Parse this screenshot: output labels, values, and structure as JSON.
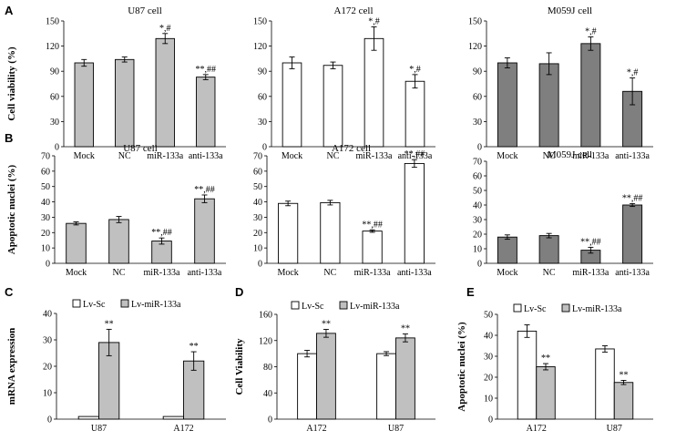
{
  "figure": {
    "panel_letters": [
      "A",
      "B",
      "C",
      "D",
      "E"
    ]
  },
  "chart_data": [
    {
      "id": "A1",
      "type": "bar",
      "panel": "A",
      "title": "U87 cell",
      "ylabel": "Cell  viability (%)",
      "xlabel": "",
      "categories": [
        "Mock",
        "NC",
        "miR-133a",
        "anti-133a"
      ],
      "values": [
        100,
        104,
        129,
        83
      ],
      "errors": [
        4,
        3,
        6,
        3
      ],
      "annotations": [
        "",
        "",
        "*,#",
        "**,##"
      ],
      "ylim": [
        0,
        150
      ],
      "yticks": [
        0,
        30,
        60,
        90,
        120,
        150
      ],
      "bar_colors": [
        "#c0c0c0"
      ]
    },
    {
      "id": "A2",
      "type": "bar",
      "panel": "A",
      "title": "A172 cell",
      "ylabel": "",
      "xlabel": "",
      "categories": [
        "Mock",
        "NC",
        "miR-133a",
        "anti-133a"
      ],
      "values": [
        100,
        97,
        129,
        78
      ],
      "errors": [
        7,
        4,
        14,
        8
      ],
      "annotations": [
        "",
        "",
        "*,#",
        "*,#"
      ],
      "ylim": [
        0,
        150
      ],
      "yticks": [
        0,
        30,
        60,
        90,
        120,
        150
      ],
      "bar_colors": [
        "#ffffff"
      ]
    },
    {
      "id": "A3",
      "type": "bar",
      "panel": "A",
      "title": "M059J cell",
      "ylabel": "",
      "xlabel": "",
      "categories": [
        "Mock",
        "NC",
        "miR-133a",
        "anti-133a"
      ],
      "values": [
        100,
        99,
        123,
        66
      ],
      "errors": [
        6,
        13,
        8,
        16
      ],
      "annotations": [
        "",
        "",
        "*,#",
        "*,#"
      ],
      "ylim": [
        0,
        150
      ],
      "yticks": [
        0,
        30,
        60,
        90,
        120,
        150
      ],
      "bar_colors": [
        "#7f7f7f"
      ]
    },
    {
      "id": "B1",
      "type": "bar",
      "panel": "B",
      "title": "U87 cell",
      "ylabel": "Apoptotic nuclei (%)",
      "xlabel": "",
      "categories": [
        "Mock",
        "NC",
        "miR-133a",
        "anti-133a"
      ],
      "values": [
        26,
        28.5,
        14.5,
        42
      ],
      "errors": [
        1,
        2,
        2,
        2.5
      ],
      "annotations": [
        "",
        "",
        "**,##",
        "**,##"
      ],
      "ylim": [
        0,
        70
      ],
      "yticks": [
        0,
        10,
        20,
        30,
        40,
        50,
        60,
        70
      ],
      "bar_colors": [
        "#c0c0c0"
      ]
    },
    {
      "id": "B2",
      "type": "bar",
      "panel": "B",
      "title": "A172 cell",
      "ylabel": "",
      "xlabel": "",
      "categories": [
        "Mock",
        "NC",
        "miR-133a",
        "anti-133a"
      ],
      "values": [
        39,
        39.5,
        21,
        65
      ],
      "errors": [
        1.5,
        1.5,
        0.8,
        2.5
      ],
      "annotations": [
        "",
        "",
        "**,##",
        "**,##"
      ],
      "ylim": [
        0,
        70
      ],
      "yticks": [
        0,
        10,
        20,
        30,
        40,
        50,
        60,
        70
      ],
      "bar_colors": [
        "#ffffff"
      ]
    },
    {
      "id": "B3",
      "type": "bar",
      "panel": "B",
      "title": "M059J cell",
      "ylabel": "",
      "xlabel": "",
      "categories": [
        "Mock",
        "NC",
        "miR-133a",
        "anti-133a"
      ],
      "values": [
        18,
        19,
        9,
        40
      ],
      "errors": [
        1.5,
        1.5,
        2,
        1
      ],
      "annotations": [
        "",
        "",
        "**,##",
        "**,##"
      ],
      "ylim": [
        0,
        70
      ],
      "yticks": [
        0,
        10,
        20,
        30,
        40,
        50,
        60,
        70
      ],
      "bar_colors": [
        "#7f7f7f"
      ]
    },
    {
      "id": "C",
      "type": "bar",
      "panel": "C",
      "title": "",
      "ylabel": "mRNA expression",
      "xlabel": "",
      "categories": [
        "U87",
        "A172"
      ],
      "series": [
        {
          "name": "Lv-Sc",
          "values": [
            1,
            1
          ],
          "errors": [
            0,
            0
          ],
          "color": "#ffffff"
        },
        {
          "name": "Lv-miR-133a",
          "values": [
            29,
            22
          ],
          "errors": [
            5,
            3.5
          ],
          "color": "#c0c0c0"
        }
      ],
      "annotations": [
        [
          "",
          "**"
        ],
        [
          "",
          "**"
        ]
      ],
      "ylim": [
        0,
        40
      ],
      "yticks": [
        0,
        10,
        20,
        30,
        40
      ],
      "legend": "top"
    },
    {
      "id": "D",
      "type": "bar",
      "panel": "D",
      "title": "",
      "ylabel": "Cell Viability",
      "xlabel": "",
      "categories": [
        "A172",
        "U87"
      ],
      "series": [
        {
          "name": "Lv-Sc",
          "values": [
            100,
            100
          ],
          "errors": [
            5,
            3
          ],
          "color": "#ffffff"
        },
        {
          "name": "Lv-miR-133a",
          "values": [
            131,
            124
          ],
          "errors": [
            6,
            6
          ],
          "color": "#c0c0c0"
        }
      ],
      "annotations": [
        [
          "",
          "**"
        ],
        [
          "",
          "**"
        ]
      ],
      "ylim": [
        0,
        160
      ],
      "yticks": [
        0,
        40,
        80,
        120,
        160
      ],
      "legend": "top"
    },
    {
      "id": "E",
      "type": "bar",
      "panel": "E",
      "title": "",
      "ylabel": "Apoptotic nuclei (%)",
      "xlabel": "",
      "categories": [
        "A172",
        "U87"
      ],
      "series": [
        {
          "name": "Lv-Sc",
          "values": [
            42,
            33.5
          ],
          "errors": [
            3,
            1.5
          ],
          "color": "#ffffff"
        },
        {
          "name": "Lv-miR-133a",
          "values": [
            25,
            17.5
          ],
          "errors": [
            1.5,
            1
          ],
          "color": "#c0c0c0"
        }
      ],
      "annotations": [
        [
          "",
          "**"
        ],
        [
          "",
          "**"
        ]
      ],
      "ylim": [
        0,
        50
      ],
      "yticks": [
        0,
        10,
        20,
        30,
        40,
        50
      ],
      "legend": "top"
    }
  ]
}
